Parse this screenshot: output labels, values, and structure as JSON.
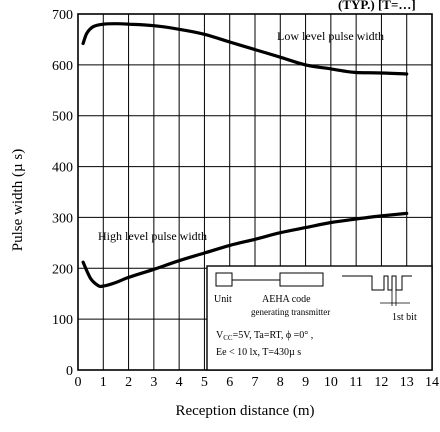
{
  "chart_data": {
    "type": "line",
    "title": "",
    "xlabel": "Reception distance (m)",
    "ylabel": "Pulse width (µ s)",
    "xlim": [
      0,
      14
    ],
    "ylim": [
      0,
      700
    ],
    "xticks": [
      0,
      1,
      2,
      3,
      4,
      5,
      6,
      7,
      8,
      9,
      10,
      11,
      12,
      13,
      14
    ],
    "yticks": [
      0,
      100,
      200,
      300,
      400,
      500,
      600,
      700
    ],
    "grid": true,
    "series": [
      {
        "name": "Low level pulse width",
        "x": [
          0.2,
          0.35,
          0.6,
          1.0,
          1.5,
          2.0,
          3.0,
          4.0,
          5.0,
          6.0,
          7.0,
          8.0,
          9.0,
          10.0,
          10.5,
          11.0,
          12.0,
          13.0
        ],
        "y": [
          642,
          662,
          675,
          680,
          681,
          680,
          677,
          670,
          660,
          645,
          630,
          615,
          600,
          592,
          588,
          585,
          584,
          582
        ]
      },
      {
        "name": "High level pulse width",
        "x": [
          0.2,
          0.5,
          0.8,
          1.0,
          1.5,
          2.0,
          3.0,
          4.0,
          5.0,
          6.0,
          7.0,
          8.0,
          9.0,
          10.0,
          11.0,
          12.0,
          13.0
        ],
        "y": [
          212,
          180,
          166,
          165,
          172,
          182,
          198,
          215,
          230,
          245,
          257,
          270,
          280,
          290,
          297,
          303,
          308
        ]
      }
    ],
    "annotations": [
      "Low level pulse width",
      "High level pulse width"
    ],
    "inset": {
      "unit_label": "Unit",
      "code_label_1": "AEHA code",
      "code_label_2": "generating transmitter",
      "bit_label": "1st bit",
      "cond_line_1": "V",
      "cond_line_1_sub": "CC",
      "cond_line_1_rest": "=5V, Ta=RT, ϕ =0° ,",
      "cond_line_2": "Ee < 10 lx, T=430µ s"
    },
    "corner_label": "(TYP.) [T=…]"
  }
}
